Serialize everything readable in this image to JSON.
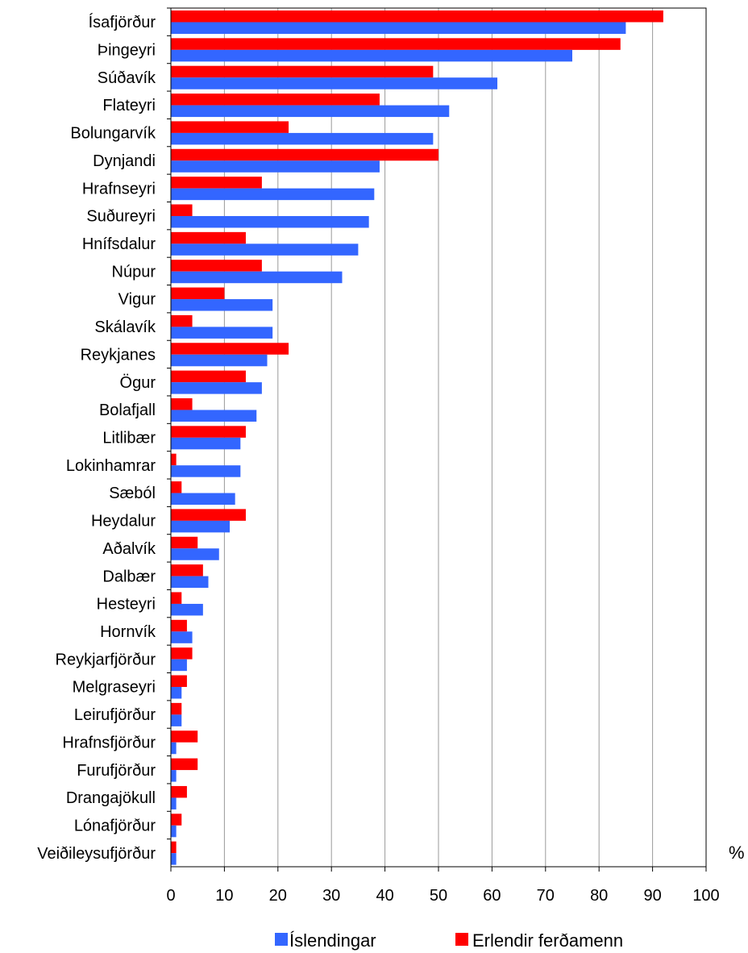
{
  "chart_data": {
    "type": "bar",
    "orientation": "horizontal",
    "categories": [
      "Ísafjörður",
      "Þingeyri",
      "Súðavík",
      "Flateyri",
      "Bolungarvík",
      "Dynjandi",
      "Hrafnseyri",
      "Suðureyri",
      "Hnífsdalur",
      "Núpur",
      "Vigur",
      "Skálavík",
      "Reykjanes",
      "Ögur",
      "Bolafjall",
      "Litlibær",
      "Lokinhamrar",
      "Sæból",
      "Heydalur",
      "Aðalvík",
      "Dalbær",
      "Hesteyri",
      "Hornvík",
      "Reykjarfjörður",
      "Melgraseyri",
      "Leirufjörður",
      "Hrafnsfjörður",
      "Furufjörður",
      "Drangajökull",
      "Lónafjörður",
      "Veiðileysufjörður"
    ],
    "series": [
      {
        "name": "Erlendir ferðamenn",
        "color": "#ff0000",
        "values": [
          92,
          84,
          49,
          39,
          22,
          50,
          17,
          4,
          14,
          17,
          10,
          4,
          22,
          14,
          4,
          14,
          1,
          2,
          14,
          5,
          6,
          2,
          3,
          4,
          3,
          2,
          5,
          5,
          3,
          2,
          1
        ]
      },
      {
        "name": "Íslendingar",
        "color": "#3366ff",
        "values": [
          85,
          75,
          61,
          52,
          49,
          39,
          38,
          37,
          35,
          32,
          19,
          19,
          18,
          17,
          16,
          13,
          13,
          12,
          11,
          9,
          7,
          6,
          4,
          3,
          2,
          2,
          1,
          1,
          1,
          1,
          1
        ]
      }
    ],
    "legend_order": [
      "Íslendingar",
      "Erlendir ferðamenn"
    ],
    "xlim": [
      0,
      100
    ],
    "xticks": [
      "0",
      "10",
      "20",
      "30",
      "40",
      "50",
      "60",
      "70",
      "80",
      "90",
      "100"
    ],
    "unit": "%",
    "grid": true,
    "legend_position": "bottom"
  }
}
